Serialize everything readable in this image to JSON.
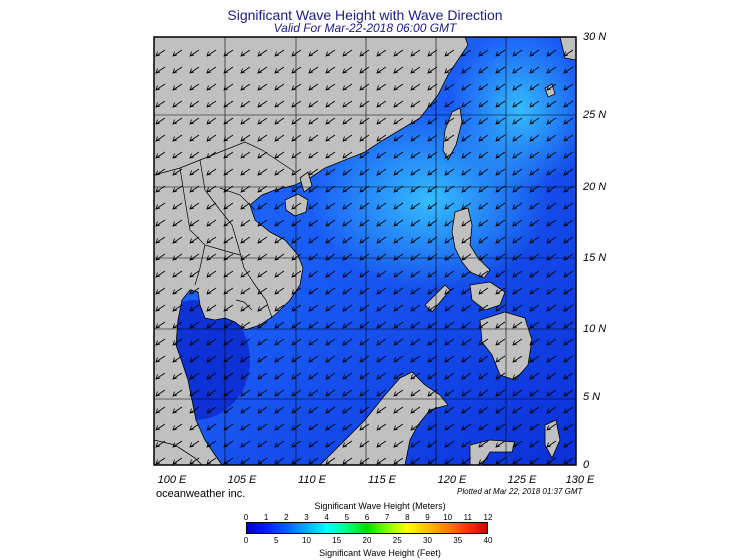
{
  "header": {
    "title": "Significant Wave Height with Wave Direction",
    "subtitle": "Valid For Mar-22-2018 06:00 GMT"
  },
  "map": {
    "lat_labels": [
      "30 N",
      "25 N",
      "20 N",
      "15 N",
      "10 N",
      "5 N",
      "0"
    ],
    "lon_labels": [
      "100 E",
      "105 E",
      "110 E",
      "115 E",
      "120 E",
      "125 E",
      "130 E"
    ],
    "lat_range": [
      0,
      30
    ],
    "lon_range": [
      100,
      130
    ],
    "land_color": "#c0c0c0",
    "border_color": "#000000",
    "arrow_direction": "southwest"
  },
  "footer": {
    "company": "oceanweather inc.",
    "plotted": "Plotted at Mar 22, 2018 01:37 GMT"
  },
  "colorbar": {
    "title_meters": "Significant Wave Height (Meters)",
    "title_feet": "Significant Wave Height (Feet)",
    "ticks_meters": [
      "0",
      "1",
      "2",
      "3",
      "4",
      "5",
      "6",
      "7",
      "8",
      "9",
      "10",
      "11",
      "12"
    ],
    "ticks_feet": [
      "0",
      "5",
      "10",
      "15",
      "20",
      "25",
      "30",
      "35",
      "40"
    ],
    "colors": [
      "#0000c8",
      "#0020ff",
      "#0060ff",
      "#00b0ff",
      "#00ffff",
      "#00ff80",
      "#00e000",
      "#80ff00",
      "#ffff00",
      "#ffc000",
      "#ff8000",
      "#ff3000",
      "#d00000"
    ]
  }
}
